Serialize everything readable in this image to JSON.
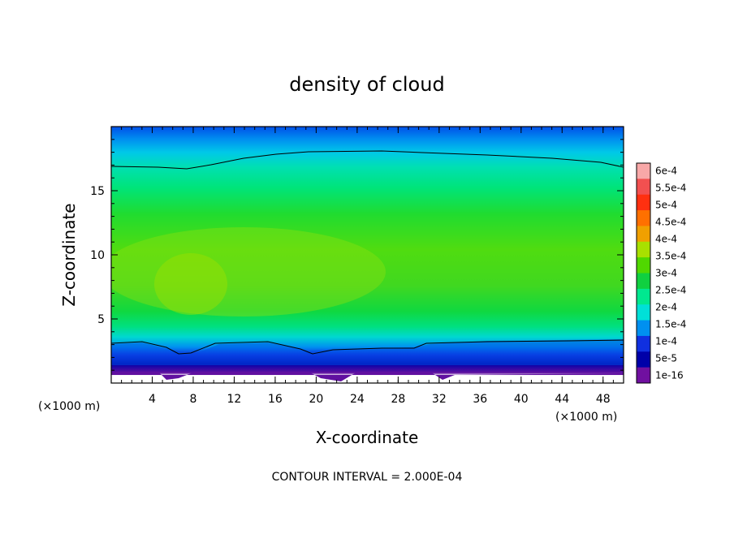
{
  "chart_data": {
    "type": "heatmap",
    "title": "density of cloud",
    "xlabel": "X-coordinate",
    "ylabel": "Z-coordinate",
    "x_unit": "(×1000 m)",
    "y_unit": "(×1000 m)",
    "xlim": [
      0,
      50
    ],
    "ylim": [
      0,
      20
    ],
    "x_ticks": [
      "4",
      "8",
      "12",
      "16",
      "20",
      "24",
      "28",
      "32",
      "36",
      "40",
      "44",
      "48"
    ],
    "y_ticks": [
      "5",
      "10",
      "15"
    ],
    "colorbar": {
      "labels": [
        "6e-4",
        "5.5e-4",
        "5e-4",
        "4.5e-4",
        "4e-4",
        "3.5e-4",
        "3e-4",
        "2.5e-4",
        "2e-4",
        "1.5e-4",
        "1e-4",
        "5e-5",
        "1e-16"
      ],
      "colors": [
        "#f8a8a8",
        "#f25050",
        "#ff3010",
        "#ff7000",
        "#f0a000",
        "#a8e000",
        "#50d800",
        "#10d040",
        "#00e890",
        "#00e0d8",
        "#0090f0",
        "#1030e0",
        "#0000a8",
        "#7010a0"
      ]
    },
    "contour_interval_text": "CONTOUR INTERVAL = 2.000E-04"
  }
}
